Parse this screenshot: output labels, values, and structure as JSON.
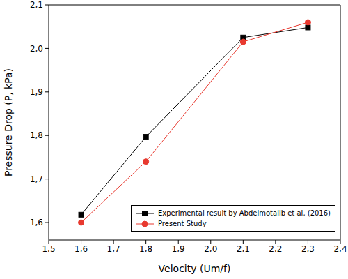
{
  "chart_data": {
    "type": "line",
    "x_label": "Velocity (Um/f)",
    "y_label": "Pressure Drop (P, kPa)",
    "xlim": [
      1.5,
      2.4
    ],
    "xticks": [
      {
        "value": 1.5,
        "label": "1,5"
      },
      {
        "value": 1.6,
        "label": "1,6"
      },
      {
        "value": 1.7,
        "label": "1,7"
      },
      {
        "value": 1.8,
        "label": "1,8"
      },
      {
        "value": 1.9,
        "label": "1,9"
      },
      {
        "value": 2.0,
        "label": "2,0"
      },
      {
        "value": 2.1,
        "label": "2,1"
      },
      {
        "value": 2.2,
        "label": "2,2"
      },
      {
        "value": 2.3,
        "label": "2,3"
      },
      {
        "value": 2.4,
        "label": "2,4"
      }
    ],
    "ylim": [
      1.56,
      2.1
    ],
    "yticks": [
      {
        "value": 1.6,
        "label": "1,6"
      },
      {
        "value": 1.7,
        "label": "1,7"
      },
      {
        "value": 1.8,
        "label": "1,8"
      },
      {
        "value": 1.9,
        "label": "1,9"
      },
      {
        "value": 2.0,
        "label": "2,0"
      },
      {
        "value": 2.1,
        "label": "2,1"
      }
    ],
    "grid": false,
    "legend": "lower right",
    "x": [
      1.6,
      1.8,
      2.1,
      2.3
    ],
    "series": [
      {
        "name": "Experimental result by Abdelmotalib et al, (2016)",
        "color": "#000000",
        "marker": "square",
        "line_style": "solid",
        "values": [
          1.618,
          1.797,
          2.025,
          2.048
        ]
      },
      {
        "name": "Present Study",
        "color": "#e8392f",
        "marker": "circle",
        "line_style": "solid",
        "values": [
          1.6,
          1.74,
          2.015,
          2.06
        ]
      }
    ]
  }
}
